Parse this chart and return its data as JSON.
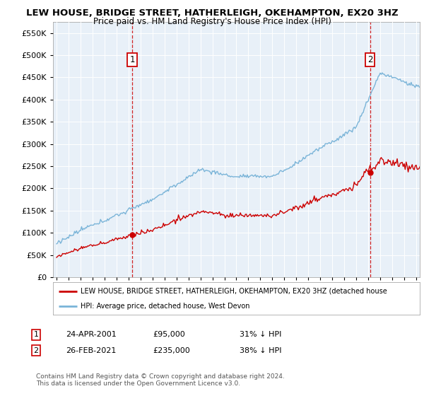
{
  "title": "LEW HOUSE, BRIDGE STREET, HATHERLEIGH, OKEHAMPTON, EX20 3HZ",
  "subtitle": "Price paid vs. HM Land Registry's House Price Index (HPI)",
  "hpi_color": "#7ab4d8",
  "price_color": "#cc0000",
  "vline_color": "#cc0000",
  "background_color": "#ffffff",
  "plot_bg_color": "#e8f0f8",
  "grid_color": "#ffffff",
  "ylim": [
    0,
    575000
  ],
  "yticks": [
    0,
    50000,
    100000,
    150000,
    200000,
    250000,
    300000,
    350000,
    400000,
    450000,
    500000,
    550000
  ],
  "sale1_date": "24-APR-2001",
  "sale1_price": 95000,
  "sale1_label": "31% ↓ HPI",
  "sale1_year": 2001.3,
  "sale2_date": "26-FEB-2021",
  "sale2_price": 235000,
  "sale2_label": "38% ↓ HPI",
  "sale2_year": 2021.15,
  "legend_house": "LEW HOUSE, BRIDGE STREET, HATHERLEIGH, OKEHAMPTON, EX20 3HZ (detached house",
  "legend_hpi": "HPI: Average price, detached house, West Devon",
  "footnote": "Contains HM Land Registry data © Crown copyright and database right 2024.\nThis data is licensed under the Open Government Licence v3.0."
}
